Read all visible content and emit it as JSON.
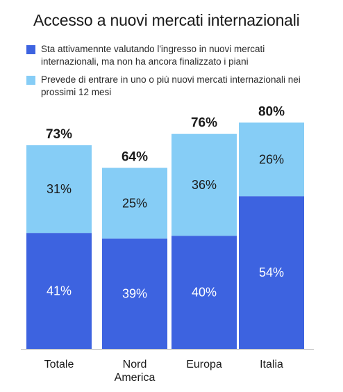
{
  "chart_data": {
    "type": "bar",
    "stacked": true,
    "title": "Accesso a nuovi mercati internazionali",
    "categories": [
      "Totale",
      "Nord America",
      "Europa",
      "Italia"
    ],
    "series": [
      {
        "name": "Sta attivamennte valutando l'ingresso in nuovi mercati internazionali, ma non ha ancora finalizzato i piani",
        "values": [
          41,
          39,
          40,
          54
        ],
        "labels": [
          "41%",
          "39%",
          "40%",
          "54%"
        ],
        "color": "#3d63e0"
      },
      {
        "name": "Prevede di entrare in uno o più nuovi mercati internazionali nei prossimi 12 mesi",
        "values": [
          31,
          25,
          36,
          26
        ],
        "labels": [
          "31%",
          "25%",
          "36%",
          "26%"
        ],
        "color": "#86cdf6"
      }
    ],
    "totals": [
      73,
      64,
      76,
      80
    ],
    "total_labels": [
      "73%",
      "64%",
      "76%",
      "80%"
    ],
    "ylim": [
      0,
      100
    ],
    "legend": "top",
    "grid": false
  },
  "colors": {
    "dark": "#3d63e0",
    "light": "#86cdf6",
    "axis": "#bdbdbd"
  }
}
